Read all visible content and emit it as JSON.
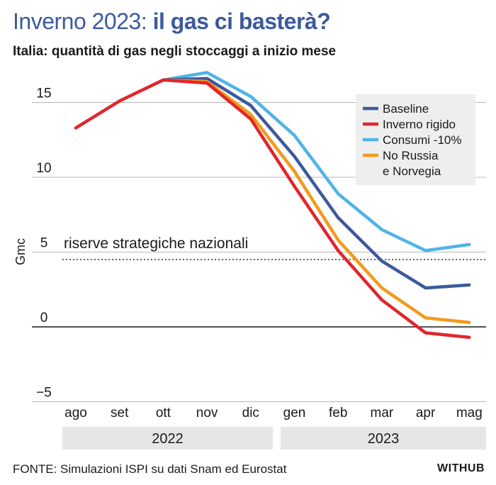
{
  "header": {
    "title_part1": "Inverno 2023: ",
    "title_part2": "il gas ci basterà?",
    "subtitle": "Italia: quantità di gas negli stoccaggi a inizio mese"
  },
  "footer": {
    "source": "FONTE: Simulazioni ISPI su dati Snam ed Eurostat",
    "brand": "WITHUB"
  },
  "chart_data": {
    "type": "line",
    "title": "Inverno 2023: il gas ci basterà?",
    "subtitle": "Italia: quantità di gas negli stoccaggi a inizio mese",
    "ylabel": "Gmc",
    "ylim": [
      -5,
      17
    ],
    "yticks": [
      15,
      10,
      5,
      0,
      -5
    ],
    "grid": "horizontal",
    "legend_placement": "top-right",
    "categories": [
      "ago",
      "set",
      "ott",
      "nov",
      "dic",
      "gen",
      "feb",
      "mar",
      "apr",
      "mag"
    ],
    "year_groups": [
      {
        "label": "2022",
        "from": 0,
        "to": 4
      },
      {
        "label": "2023",
        "from": 5,
        "to": 9
      }
    ],
    "reference_line": {
      "label": "riserve strategiche nazionali",
      "value": 4.5
    },
    "series": [
      {
        "name": "Baseline",
        "color": "#3c5a9c",
        "values": [
          null,
          null,
          16.5,
          16.6,
          14.8,
          11.4,
          7.3,
          4.4,
          2.6,
          2.8
        ]
      },
      {
        "name": "Inverno rigido",
        "color": "#e0262b",
        "values": [
          13.3,
          15.1,
          16.5,
          16.3,
          13.9,
          9.4,
          5.1,
          1.8,
          -0.4,
          -0.7
        ]
      },
      {
        "name": "Consumi -10%",
        "color": "#4fb4e6",
        "values": [
          null,
          null,
          16.5,
          17.0,
          15.4,
          12.8,
          8.9,
          6.5,
          5.1,
          5.5
        ]
      },
      {
        "name": "No Russia\ne Norvegia",
        "color": "#f39a1b",
        "values": [
          null,
          null,
          16.5,
          16.4,
          14.2,
          10.4,
          5.8,
          2.6,
          0.6,
          0.3
        ]
      }
    ]
  }
}
